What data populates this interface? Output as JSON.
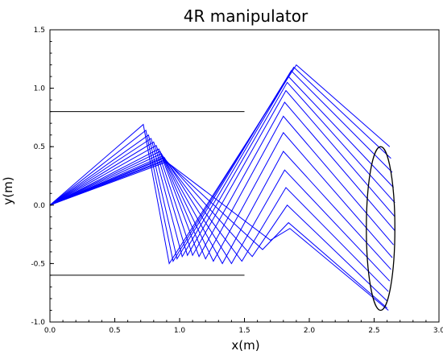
{
  "chart_data": {
    "type": "line",
    "title": "4R manipulator",
    "xlabel": "x(m)",
    "ylabel": "y(m)",
    "xlim": [
      0.0,
      3.0
    ],
    "ylim": [
      -1.0,
      1.5
    ],
    "xticks": [
      "0.0",
      "0.5",
      "1.0",
      "1.5",
      "2.0",
      "2.5",
      "3.0"
    ],
    "yticks": [
      "-1.0",
      "-0.5",
      "0.0",
      "0.5",
      "1.0",
      "1.5"
    ],
    "grid": false,
    "colors": {
      "arm": "#0000ff",
      "wall": "#000000",
      "path": "#000000",
      "axes": "#000000"
    },
    "walls": [
      {
        "x": [
          0.0,
          1.5
        ],
        "y": [
          0.8,
          0.8
        ]
      },
      {
        "x": [
          0.0,
          1.5
        ],
        "y": [
          -0.6,
          -0.6
        ]
      }
    ],
    "ellipse": {
      "cx": 2.55,
      "cy": -0.2,
      "rx": 0.11,
      "ry": 0.7
    },
    "base": {
      "x": 0.0,
      "y": 0.0
    },
    "arm_configurations": [
      {
        "x": [
          0.0,
          0.72,
          0.92,
          1.9,
          2.62
        ],
        "y": [
          0.0,
          0.69,
          -0.5,
          1.2,
          0.5
        ]
      },
      {
        "x": [
          0.0,
          0.74,
          0.95,
          1.88,
          2.63
        ],
        "y": [
          0.0,
          0.64,
          -0.48,
          1.18,
          0.4
        ]
      },
      {
        "x": [
          0.0,
          0.76,
          0.98,
          1.86,
          2.64
        ],
        "y": [
          0.0,
          0.6,
          -0.46,
          1.15,
          0.28
        ]
      },
      {
        "x": [
          0.0,
          0.78,
          1.02,
          1.84,
          2.65
        ],
        "y": [
          0.0,
          0.57,
          -0.44,
          1.1,
          0.15
        ]
      },
      {
        "x": [
          0.0,
          0.8,
          1.06,
          1.83,
          2.66
        ],
        "y": [
          0.0,
          0.54,
          -0.43,
          1.05,
          0.02
        ]
      },
      {
        "x": [
          0.0,
          0.82,
          1.1,
          1.82,
          2.66
        ],
        "y": [
          0.0,
          0.51,
          -0.43,
          0.98,
          -0.1
        ]
      },
      {
        "x": [
          0.0,
          0.84,
          1.15,
          1.81,
          2.66
        ],
        "y": [
          0.0,
          0.48,
          -0.44,
          0.88,
          -0.22
        ]
      },
      {
        "x": [
          0.0,
          0.85,
          1.2,
          1.8,
          2.65
        ],
        "y": [
          0.0,
          0.46,
          -0.46,
          0.76,
          -0.34
        ]
      },
      {
        "x": [
          0.0,
          0.86,
          1.26,
          1.8,
          2.64
        ],
        "y": [
          0.0,
          0.44,
          -0.48,
          0.62,
          -0.45
        ]
      },
      {
        "x": [
          0.0,
          0.87,
          1.33,
          1.8,
          2.63
        ],
        "y": [
          0.0,
          0.42,
          -0.5,
          0.46,
          -0.55
        ]
      },
      {
        "x": [
          0.0,
          0.88,
          1.4,
          1.81,
          2.62
        ],
        "y": [
          0.0,
          0.41,
          -0.5,
          0.3,
          -0.65
        ]
      },
      {
        "x": [
          0.0,
          0.88,
          1.48,
          1.82,
          2.61
        ],
        "y": [
          0.0,
          0.4,
          -0.48,
          0.15,
          -0.74
        ]
      },
      {
        "x": [
          0.0,
          0.89,
          1.56,
          1.83,
          2.6
        ],
        "y": [
          0.0,
          0.39,
          -0.44,
          0.0,
          -0.82
        ]
      },
      {
        "x": [
          0.0,
          0.89,
          1.64,
          1.84,
          2.6
        ],
        "y": [
          0.0,
          0.38,
          -0.38,
          -0.15,
          -0.88
        ]
      },
      {
        "x": [
          0.0,
          0.9,
          1.7,
          1.85,
          2.61
        ],
        "y": [
          0.0,
          0.37,
          -0.3,
          -0.2,
          -0.9
        ]
      }
    ]
  }
}
